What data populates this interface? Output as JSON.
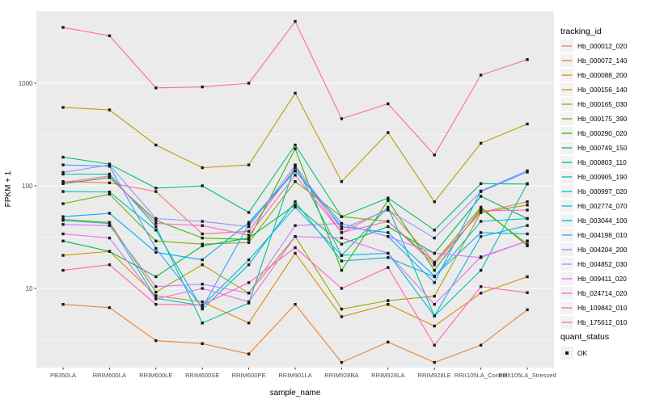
{
  "figure": {
    "y_axis_title": "FPKM + 1",
    "x_axis_title": "sample_name",
    "legend_title": "tracking_id",
    "quant_legend_title": "quant_status",
    "quant_legend_item": "OK"
  },
  "colors": {
    "panel_bg": "#EBEBEB",
    "grid": "#FFFFFF",
    "point": "#1A1A1A",
    "tick_text": "#4D4D4D",
    "axis_tick": "#333333",
    "legend_key_bg": "#F2F2F2"
  },
  "chart_data": {
    "type": "line",
    "title": "",
    "xlabel": "sample_name",
    "ylabel": "FPKM + 1",
    "y_scale": "log10",
    "y_ticks": [
      10,
      100,
      1000
    ],
    "y_minor_ticks": [
      3.162,
      31.62,
      316.2,
      3162
    ],
    "ylim": [
      1.7,
      5000
    ],
    "grid": true,
    "legend_position": "right",
    "point_marker": "filled-black-square",
    "quant_status": "OK",
    "x_categories": [
      "PB350LA",
      "RRIM600LA",
      "RRIM600LE",
      "RRIM600SE",
      "RRIM600PE",
      "RRIM901LA",
      "RRIM928BA",
      "RRIM928LA",
      "RRIM928LE",
      "RRII105LA_Control",
      "RRII105LA_Stressed"
    ],
    "series": [
      {
        "name": "Hb_000012_020",
        "color": "#F8766D",
        "values": [
          110,
          107,
          88,
          34,
          36,
          150,
          35,
          60,
          18,
          55,
          70
        ]
      },
      {
        "name": "Hb_000072_140",
        "color": "#EA8331",
        "values": [
          7,
          6.5,
          3.1,
          2.9,
          2.3,
          7,
          1.9,
          3,
          1.9,
          2.8,
          6.2
        ]
      },
      {
        "name": "Hb_000088_200",
        "color": "#D89000",
        "values": [
          21,
          23,
          8.5,
          7.4,
          4.6,
          22,
          5.3,
          7,
          4.3,
          9,
          13
        ]
      },
      {
        "name": "Hb_000156_140",
        "color": "#C09B00",
        "values": [
          580,
          550,
          250,
          150,
          160,
          800,
          110,
          330,
          70,
          260,
          400
        ]
      },
      {
        "name": "Hb_000165_030",
        "color": "#A3A500",
        "values": [
          47,
          44,
          9.2,
          17,
          9,
          32,
          6.3,
          7.6,
          8.4,
          55,
          65
        ]
      },
      {
        "name": "Hb_000175_390",
        "color": "#7CAE00",
        "values": [
          67,
          83,
          29,
          27,
          28,
          110,
          50,
          45,
          18,
          62,
          26
        ]
      },
      {
        "name": "Hb_000290_020",
        "color": "#39B600",
        "values": [
          105,
          120,
          46,
          31,
          30,
          230,
          15,
          72,
          15,
          60,
          27
        ]
      },
      {
        "name": "Hb_000749_150",
        "color": "#00BB4E",
        "values": [
          29,
          23,
          13,
          26,
          31,
          65,
          27,
          40,
          22,
          79,
          48
        ]
      },
      {
        "name": "Hb_000803_110",
        "color": "#00BF7D",
        "values": [
          190,
          163,
          95,
          100,
          55,
          250,
          50,
          76,
          37,
          105,
          104
        ]
      },
      {
        "name": "Hb_000905_190",
        "color": "#00C1A3",
        "values": [
          130,
          130,
          40,
          4.6,
          7.2,
          160,
          21,
          62,
          5.4,
          15,
          105
        ]
      },
      {
        "name": "Hb_000997_020",
        "color": "#00BFC4",
        "values": [
          88,
          87,
          37,
          6.3,
          17,
          70,
          18.5,
          20,
          13,
          45,
          48
        ]
      },
      {
        "name": "Hb_002774_070",
        "color": "#00BAE0",
        "values": [
          46,
          43,
          8,
          6.8,
          19,
          62,
          21,
          22,
          5.4,
          32,
          41
        ]
      },
      {
        "name": "Hb_003044_100",
        "color": "#00B0F6",
        "values": [
          50,
          54,
          22.5,
          19,
          44,
          140,
          40,
          35,
          13.2,
          35,
          34
        ]
      },
      {
        "name": "Hb_004198_010",
        "color": "#35A2FF",
        "values": [
          160,
          155,
          24.5,
          6.5,
          42,
          139,
          43,
          32,
          11.4,
          89,
          140
        ]
      },
      {
        "name": "Hb_004204_200",
        "color": "#9590FF",
        "values": [
          135,
          160,
          48,
          45,
          40,
          158,
          38,
          58,
          31,
          88,
          136
        ]
      },
      {
        "name": "Hb_004852_030",
        "color": "#C77CFF",
        "values": [
          42,
          41,
          10.4,
          11,
          9,
          41,
          43,
          32,
          22,
          20,
          29
        ]
      },
      {
        "name": "Hb_009411_020",
        "color": "#E76BF3",
        "values": [
          34,
          31,
          7.9,
          10,
          7.4,
          32,
          31,
          22,
          7,
          20.3,
          29
        ]
      },
      {
        "name": "Hb_024714_020",
        "color": "#FA62DB",
        "values": [
          108,
          125,
          43,
          41,
          33,
          127,
          35,
          45,
          17,
          57,
          58
        ]
      },
      {
        "name": "Hb_109842_010",
        "color": "#FF62BC",
        "values": [
          15,
          17,
          7,
          6.9,
          11.4,
          25,
          10,
          16,
          2.8,
          10.4,
          9.1
        ]
      },
      {
        "name": "Hb_175612_010",
        "color": "#FF6A98",
        "values": [
          3500,
          2900,
          900,
          920,
          1000,
          4000,
          450,
          630,
          200,
          1200,
          1700
        ]
      }
    ]
  }
}
